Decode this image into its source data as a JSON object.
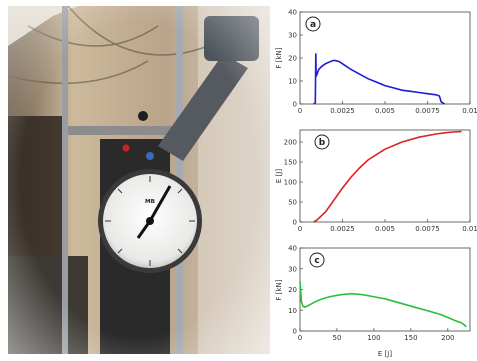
{
  "photo": {
    "gauge_label": "ᴹᴮ"
  },
  "chart_data": [
    {
      "id": "a",
      "type": "line",
      "panel_label": "a",
      "ylabel": "F [kN]",
      "xlabel": "",
      "color": "#1c1cd8",
      "ylim": [
        0,
        40
      ],
      "yticks": [
        0,
        10,
        20,
        30,
        40
      ],
      "xlim": [
        0,
        0.01
      ],
      "xticks": [
        0,
        0.0025,
        0.005,
        0.0075,
        0.01
      ],
      "xtick_labels": [
        "0",
        "0.0025",
        "0.005",
        "0.0075",
        "0.01"
      ],
      "series": [
        {
          "x": [
            0.0008,
            0.0009,
            0.00093,
            0.00095,
            0.001,
            0.0011,
            0.0013,
            0.0015,
            0.0018,
            0.002,
            0.0023,
            0.0026,
            0.003,
            0.0035,
            0.004,
            0.0045,
            0.005,
            0.0055,
            0.006,
            0.0065,
            0.007,
            0.0075,
            0.008,
            0.0082,
            0.0083,
            0.0085
          ],
          "y": [
            0,
            0.5,
            22,
            12,
            13,
            15,
            16.5,
            17.5,
            18.5,
            19,
            18.5,
            17,
            15,
            13,
            11,
            9.5,
            8,
            7,
            6,
            5.5,
            5,
            4.5,
            4,
            3.5,
            1,
            0
          ]
        }
      ]
    },
    {
      "id": "b",
      "type": "line",
      "panel_label": "b",
      "ylabel": "E [J]",
      "xlabel": "",
      "color": "#dd2323",
      "ylim": [
        0,
        230
      ],
      "yticks": [
        0,
        50,
        100,
        150,
        200
      ],
      "xlim": [
        0,
        0.01
      ],
      "xticks": [
        0,
        0.0025,
        0.005,
        0.0075,
        0.01
      ],
      "xtick_labels": [
        "0",
        "0.0025",
        "0.005",
        "0.0075",
        "0.01"
      ],
      "series": [
        {
          "x": [
            0.0008,
            0.001,
            0.0015,
            0.002,
            0.0025,
            0.003,
            0.0035,
            0.004,
            0.005,
            0.006,
            0.007,
            0.008,
            0.0085,
            0.009,
            0.0095
          ],
          "y": [
            0,
            5,
            25,
            55,
            85,
            112,
            135,
            155,
            182,
            200,
            212,
            220,
            223,
            225,
            226
          ]
        }
      ]
    },
    {
      "id": "c",
      "type": "line",
      "panel_label": "c",
      "ylabel": "F [kN]",
      "xlabel": "E [J]",
      "color": "#2bbf3a",
      "ylim": [
        0,
        40
      ],
      "yticks": [
        0,
        10,
        20,
        30,
        40
      ],
      "xlim": [
        0,
        230
      ],
      "xticks": [
        0,
        50,
        100,
        150,
        200
      ],
      "xtick_labels": [
        "0",
        "50",
        "100",
        "150",
        "200"
      ],
      "series": [
        {
          "x": [
            0,
            2,
            4,
            6,
            10,
            20,
            30,
            40,
            55,
            70,
            85,
            100,
            115,
            130,
            145,
            160,
            175,
            190,
            200,
            210,
            218,
            222,
            225
          ],
          "y": [
            24,
            14,
            12,
            11.5,
            12,
            14,
            15.5,
            16.5,
            17.5,
            18,
            17.5,
            16.5,
            15.5,
            14,
            12.5,
            11,
            9.5,
            8,
            6.5,
            5,
            4,
            3,
            2
          ]
        }
      ]
    }
  ]
}
